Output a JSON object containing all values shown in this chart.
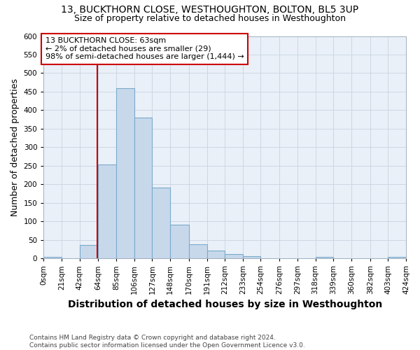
{
  "title": "13, BUCKTHORN CLOSE, WESTHOUGHTON, BOLTON, BL5 3UP",
  "subtitle": "Size of property relative to detached houses in Westhoughton",
  "xlabel": "Distribution of detached houses by size in Westhoughton",
  "ylabel": "Number of detached properties",
  "footer_line1": "Contains HM Land Registry data © Crown copyright and database right 2024.",
  "footer_line2": "Contains public sector information licensed under the Open Government Licence v3.0.",
  "bin_edges": [
    0,
    21,
    42,
    64,
    85,
    106,
    127,
    148,
    170,
    191,
    212,
    233,
    254,
    276,
    297,
    318,
    339,
    360,
    382,
    403,
    424
  ],
  "bin_labels": [
    "0sqm",
    "21sqm",
    "42sqm",
    "64sqm",
    "85sqm",
    "106sqm",
    "127sqm",
    "148sqm",
    "170sqm",
    "191sqm",
    "212sqm",
    "233sqm",
    "254sqm",
    "276sqm",
    "297sqm",
    "318sqm",
    "339sqm",
    "360sqm",
    "382sqm",
    "403sqm",
    "424sqm"
  ],
  "bar_values": [
    4,
    0,
    36,
    253,
    460,
    380,
    191,
    91,
    37,
    20,
    11,
    5,
    0,
    0,
    0,
    4,
    0,
    0,
    0,
    3
  ],
  "bar_color": "#c8d8eb",
  "bar_edge_color": "#7aaacb",
  "property_line_x": 63,
  "property_line_label": "13 BUCKTHORN CLOSE: 63sqm",
  "annotation_line2": "← 2% of detached houses are smaller (29)",
  "annotation_line3": "98% of semi-detached houses are larger (1,444) →",
  "annotation_box_color": "#ffffff",
  "annotation_box_edge_color": "#cc0000",
  "vline_color": "#cc0000",
  "ylim": [
    0,
    600
  ],
  "yticks": [
    0,
    50,
    100,
    150,
    200,
    250,
    300,
    350,
    400,
    450,
    500,
    550,
    600
  ],
  "grid_color": "#c8d4e0",
  "bg_color": "#eaf0f8",
  "plot_bg_color": "#eaf0f8",
  "title_fontsize": 10,
  "subtitle_fontsize": 9,
  "axis_label_fontsize": 9,
  "tick_fontsize": 7.5,
  "annotation_fontsize": 8,
  "footer_fontsize": 6.5
}
